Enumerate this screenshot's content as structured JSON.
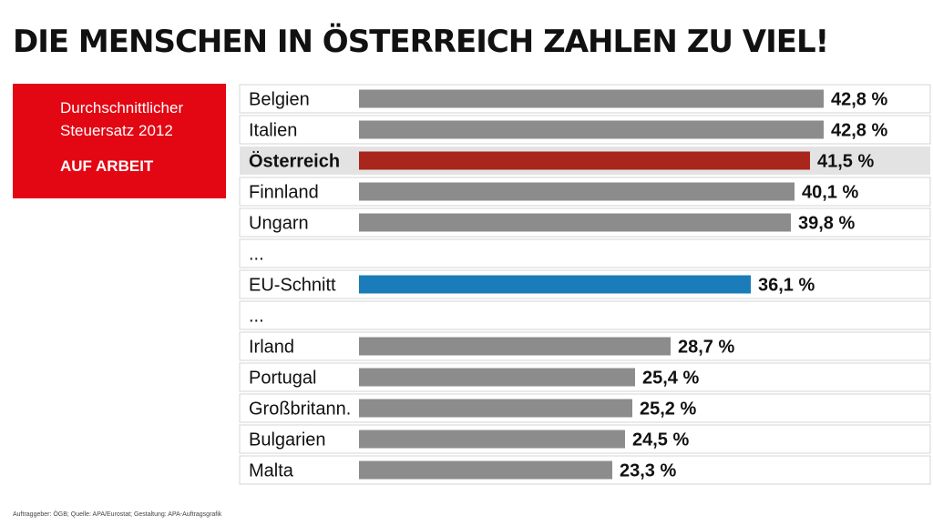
{
  "headline": "DIE MENSCHEN IN ÖSTERREICH ZAHLEN ZU VIEL!",
  "info_box": {
    "line1": "Durchschnittlicher",
    "line2": "Steuersatz 2012",
    "line3": "AUF ARBEIT"
  },
  "footer": "Auftraggeber: ÖGB; Quelle: APA/Eurostat; Gestaltung: APA-Auftragsgrafik",
  "colors": {
    "default_bar": "#8c8c8c",
    "highlight_bar": "#a8261c",
    "average_bar": "#1a7cb8",
    "highlight_row_bg": "#e3e3e3",
    "info_box_bg": "#e30613"
  },
  "chart_data": {
    "type": "bar",
    "orientation": "horizontal",
    "rows": [
      {
        "kind": "bar",
        "label": "Belgien",
        "value": 42.8,
        "value_label": "42,8 %",
        "style": "default"
      },
      {
        "kind": "bar",
        "label": "Italien",
        "value": 42.8,
        "value_label": "42,8 %",
        "style": "default"
      },
      {
        "kind": "bar",
        "label": "Österreich",
        "value": 41.5,
        "value_label": "41,5 %",
        "style": "highlight"
      },
      {
        "kind": "bar",
        "label": "Finnland",
        "value": 40.1,
        "value_label": "40,1 %",
        "style": "default"
      },
      {
        "kind": "bar",
        "label": "Ungarn",
        "value": 39.8,
        "value_label": "39,8 %",
        "style": "default"
      },
      {
        "kind": "gap",
        "label": "..."
      },
      {
        "kind": "bar",
        "label": "EU-Schnitt",
        "value": 36.1,
        "value_label": "36,1 %",
        "style": "average"
      },
      {
        "kind": "gap",
        "label": "..."
      },
      {
        "kind": "bar",
        "label": "Irland",
        "value": 28.7,
        "value_label": "28,7 %",
        "style": "default"
      },
      {
        "kind": "bar",
        "label": "Portugal",
        "value": 25.4,
        "value_label": "25,4 %",
        "style": "default"
      },
      {
        "kind": "bar",
        "label": "Großbritann.",
        "value": 25.2,
        "value_label": "25,2 %",
        "style": "default"
      },
      {
        "kind": "bar",
        "label": "Bulgarien",
        "value": 24.5,
        "value_label": "24,5 %",
        "style": "default"
      },
      {
        "kind": "bar",
        "label": "Malta",
        "value": 23.3,
        "value_label": "23,3 %",
        "style": "default"
      }
    ],
    "xlim": [
      0,
      42.8
    ],
    "grid": false,
    "legend": "none"
  }
}
